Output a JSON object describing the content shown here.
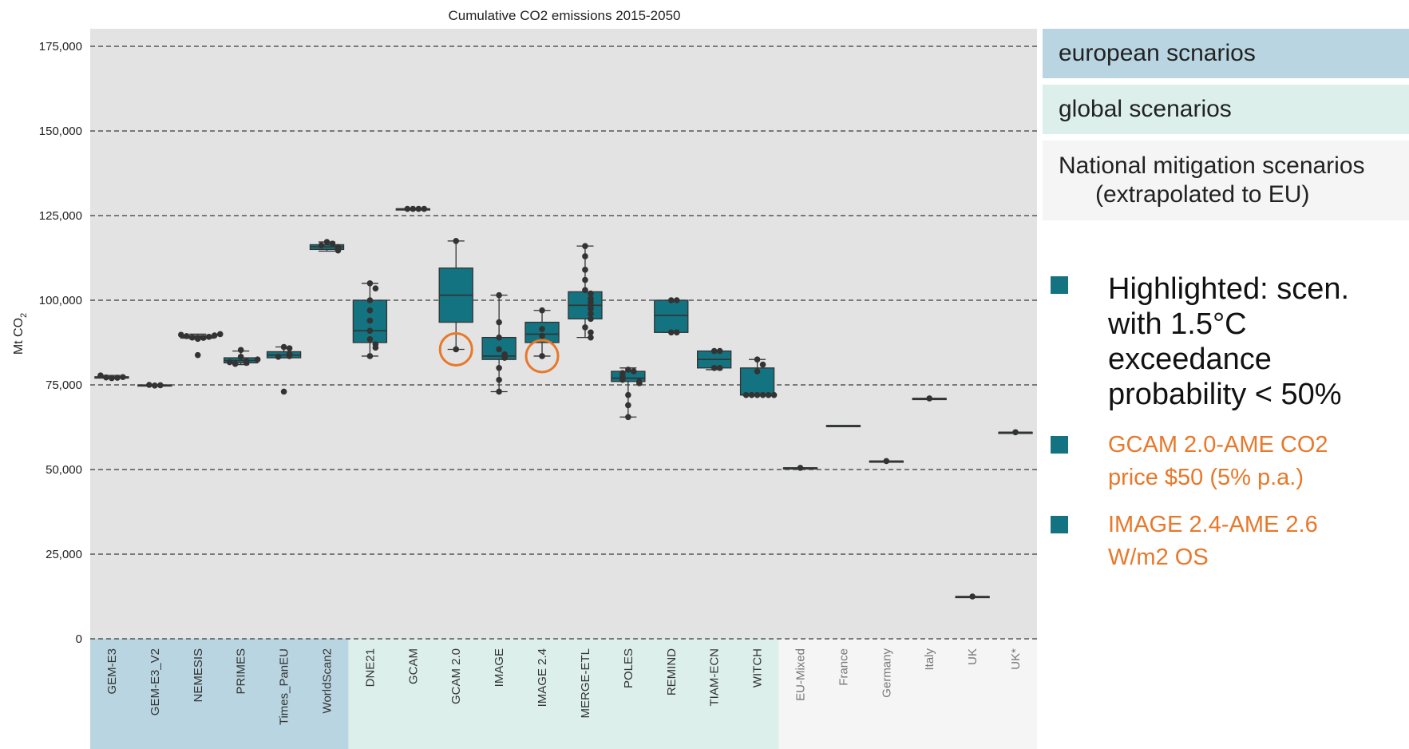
{
  "colors": {
    "plot_bg": "#e3e3e3",
    "box_fill": "#137380",
    "point": "#333333",
    "highlight": "#e8782a",
    "european_bg": "#b9d5e2",
    "global_bg": "#dcefea",
    "national_bg": "#f5f5f5"
  },
  "legend": {
    "european": "european scnarios",
    "global": "global scenarios",
    "national_line1": "National mitigation scenarios",
    "national_line2": "(extrapolated to EU)"
  },
  "bullets": {
    "highlighted": [
      "Highlighted: scen.",
      "with 1.5°C",
      "exceedance",
      "probability < 50%"
    ],
    "gcam": [
      "GCAM 2.0-AME CO2",
      "price $50 (5% p.a.)"
    ],
    "image": [
      "IMAGE 2.4-AME 2.6",
      "W/m2 OS"
    ]
  },
  "chart_data": {
    "type": "box",
    "title": "Cumulative CO2 emissions 2015-2050",
    "ylabel": "Mt CO2",
    "ylim": [
      0,
      180000
    ],
    "yticks": [
      0,
      25000,
      50000,
      75000,
      100000,
      125000,
      150000,
      175000
    ],
    "ytick_labels": [
      "0",
      "25,000",
      "50,000",
      "75,000",
      "100,000",
      "125,000",
      "150,000",
      "175,000"
    ],
    "grid": "horizontal dashed",
    "groups": [
      {
        "name": "european scnarios",
        "color": "#b9d5e2",
        "models": [
          "GEM-E3",
          "GEM-E3_V2",
          "NEMESIS",
          "PRIMES",
          "Times_PanEU",
          "WorldScan2"
        ]
      },
      {
        "name": "global scenarios",
        "color": "#dcefea",
        "models": [
          "DNE21",
          "GCAM",
          "GCAM 2.0",
          "IMAGE",
          "IMAGE 2.4",
          "MERGE-ETL",
          "POLES",
          "REMIND",
          "TIAM-ECN",
          "WITCH"
        ]
      },
      {
        "name": "National mitigation scenarios",
        "color": "#f5f5f5",
        "models": [
          "EU-Mixed",
          "France",
          "Germany",
          "Italy",
          "UK",
          "UK*"
        ]
      }
    ],
    "categories": [
      "GEM-E3",
      "GEM-E3_V2",
      "NEMESIS",
      "PRIMES",
      "Times_PanEU",
      "WorldScan2",
      "DNE21",
      "GCAM",
      "GCAM 2.0",
      "IMAGE",
      "IMAGE 2.4",
      "MERGE-ETL",
      "POLES",
      "REMIND",
      "TIAM-ECN",
      "WITCH",
      "EU-Mixed",
      "France",
      "Germany",
      "Italy",
      "UK",
      "UK*"
    ],
    "series": [
      {
        "category": "GEM-E3",
        "q1": 77000,
        "median": 77200,
        "q3": 77400,
        "whisker_low": 77000,
        "whisker_high": 77800,
        "points": [
          77000,
          77100,
          77200,
          77300,
          77800
        ]
      },
      {
        "category": "GEM-E3_V2",
        "q1": 74800,
        "median": 74900,
        "q3": 75000,
        "whisker_low": 74800,
        "whisker_high": 75000,
        "points": [
          74800,
          74900,
          75000
        ]
      },
      {
        "category": "NEMESIS",
        "q1": 88800,
        "median": 89200,
        "q3": 89600,
        "whisker_low": 88500,
        "whisker_high": 90000,
        "points": [
          83800,
          88600,
          88900,
          89000,
          89200,
          89400,
          89600,
          89800,
          90000
        ]
      },
      {
        "category": "PRIMES",
        "q1": 81500,
        "median": 82200,
        "q3": 83000,
        "whisker_low": 81000,
        "whisker_high": 85000,
        "points": [
          85300,
          83300,
          82000,
          81500,
          81200,
          81700,
          82500
        ]
      },
      {
        "category": "Times_PanEU",
        "q1": 83000,
        "median": 83800,
        "q3": 84800,
        "whisker_low": 83000,
        "whisker_high": 86200,
        "points": [
          86200,
          85800,
          84200,
          83500,
          83300,
          73000
        ]
      },
      {
        "category": "WorldScan2",
        "q1": 115000,
        "median": 115800,
        "q3": 116400,
        "whisker_low": 114500,
        "whisker_high": 117200,
        "points": [
          117200,
          116700,
          116200,
          115700,
          115200,
          114700
        ]
      },
      {
        "category": "DNE21",
        "q1": 87500,
        "median": 91000,
        "q3": 100000,
        "whisker_low": 83500,
        "whisker_high": 105000,
        "points": [
          105000,
          103500,
          100000,
          97000,
          94000,
          91000,
          88500,
          87000,
          86000,
          83500
        ]
      },
      {
        "category": "GCAM",
        "q1": 127000,
        "median": 127000,
        "q3": 127000,
        "whisker_low": 127000,
        "whisker_high": 127000,
        "points": [
          127000,
          127000,
          127000,
          127000
        ]
      },
      {
        "category": "GCAM 2.0",
        "q1": 93500,
        "median": 101500,
        "q3": 109500,
        "whisker_low": 85500,
        "whisker_high": 117500,
        "points": [
          117500,
          85500
        ],
        "highlight": 85500
      },
      {
        "category": "IMAGE",
        "q1": 82500,
        "median": 83500,
        "q3": 89000,
        "whisker_low": 73000,
        "whisker_high": 101500,
        "points": [
          101500,
          93500,
          89000,
          85500,
          84000,
          83000,
          80000,
          76500,
          73000
        ]
      },
      {
        "category": "IMAGE 2.4",
        "q1": 87500,
        "median": 90000,
        "q3": 93500,
        "whisker_low": 83500,
        "whisker_high": 97000,
        "points": [
          97000,
          91500,
          89500,
          83500
        ],
        "highlight": 83500
      },
      {
        "category": "MERGE-ETL",
        "q1": 94500,
        "median": 98500,
        "q3": 102500,
        "whisker_low": 89000,
        "whisker_high": 116000,
        "points": [
          116000,
          113000,
          109000,
          106000,
          103000,
          102000,
          100500,
          99500,
          98500,
          97500,
          96000,
          94500,
          92000,
          90500,
          89000
        ]
      },
      {
        "category": "POLES",
        "q1": 76000,
        "median": 77000,
        "q3": 79000,
        "whisker_low": 65500,
        "whisker_high": 80000,
        "points": [
          79500,
          79000,
          78500,
          77500,
          77000,
          76500,
          76000,
          75500,
          72000,
          69000,
          65500
        ]
      },
      {
        "category": "REMIND",
        "q1": 90500,
        "median": 95500,
        "q3": 100000,
        "whisker_low": 90500,
        "whisker_high": 100000,
        "points": [
          100000,
          100000,
          90500,
          90500
        ]
      },
      {
        "category": "TIAM-ECN",
        "q1": 80000,
        "median": 82500,
        "q3": 85000,
        "whisker_low": 79500,
        "whisker_high": 85000,
        "points": [
          85000,
          85000,
          80000,
          80000
        ]
      },
      {
        "category": "WITCH",
        "q1": 72000,
        "median": 72000,
        "q3": 80000,
        "whisker_low": 72000,
        "whisker_high": 82500,
        "points": [
          82500,
          81000,
          79000,
          72000,
          72000,
          72000,
          72000,
          72000,
          72000
        ]
      },
      {
        "category": "EU-Mixed",
        "q1": 50500,
        "median": 50500,
        "q3": 50500,
        "whisker_low": 50500,
        "whisker_high": 50500,
        "points": [
          50500
        ]
      },
      {
        "category": "France",
        "q1": 63000,
        "median": 63000,
        "q3": 63000,
        "whisker_low": 63000,
        "whisker_high": 63000,
        "points": []
      },
      {
        "category": "Germany",
        "q1": 52500,
        "median": 52500,
        "q3": 52500,
        "whisker_low": 52500,
        "whisker_high": 52500,
        "points": [
          52500
        ]
      },
      {
        "category": "Italy",
        "q1": 71000,
        "median": 71000,
        "q3": 71000,
        "whisker_low": 71000,
        "whisker_high": 71000,
        "points": [
          71000
        ]
      },
      {
        "category": "UK",
        "q1": 12500,
        "median": 12500,
        "q3": 12500,
        "whisker_low": 12500,
        "whisker_high": 12500,
        "points": [
          12500
        ]
      },
      {
        "category": "UK*",
        "q1": 61000,
        "median": 61000,
        "q3": 61000,
        "whisker_low": 61000,
        "whisker_high": 61000,
        "points": [
          61000
        ]
      }
    ]
  }
}
